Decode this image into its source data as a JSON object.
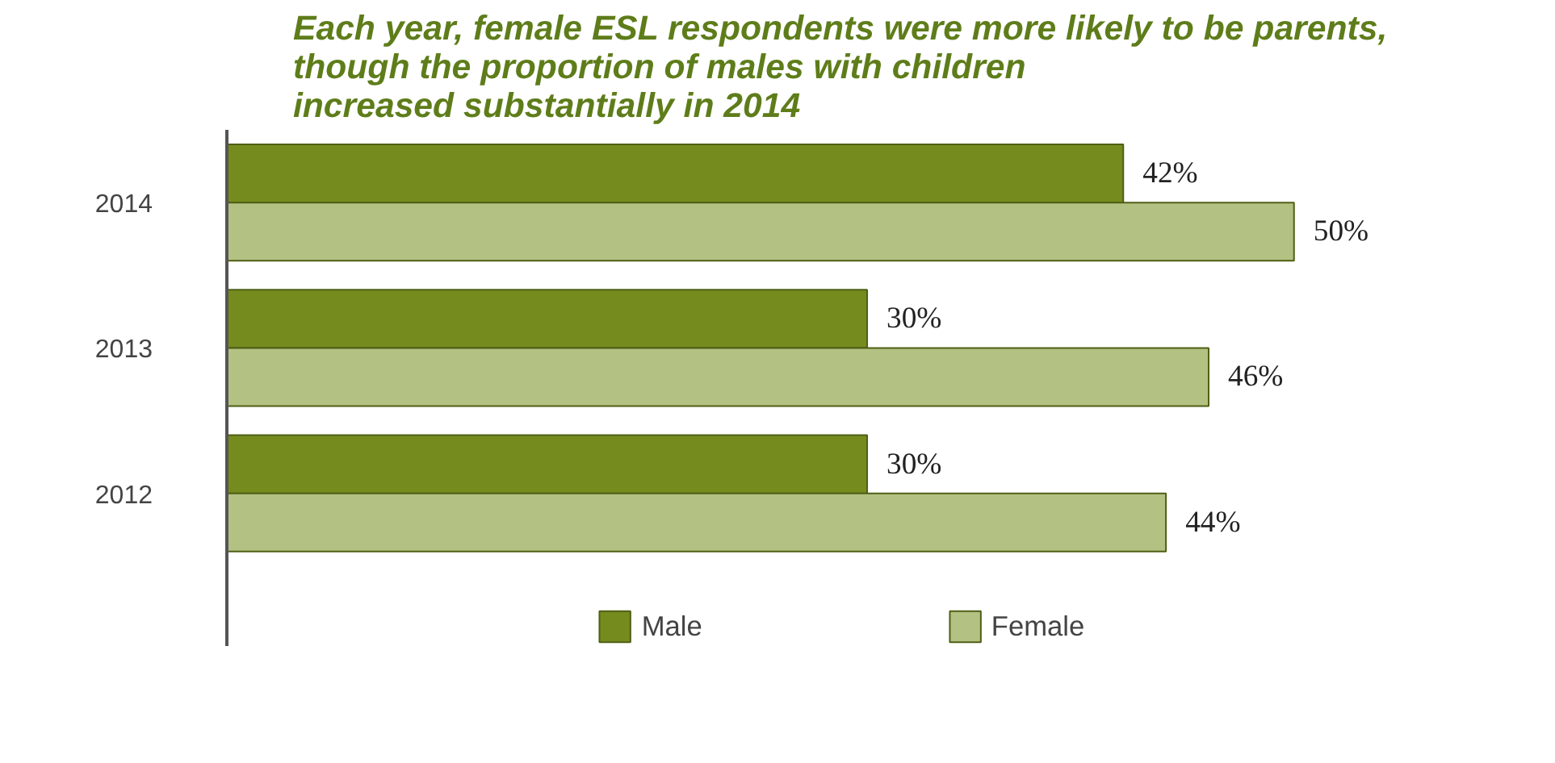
{
  "chart_data": {
    "type": "bar",
    "orientation": "horizontal",
    "title": "Each year, female ESL respondents were more likely to be parents,\nthough the proportion of males with children\nincreased substantially in 2014",
    "categories": [
      "2014",
      "2013",
      "2012"
    ],
    "series": [
      {
        "name": "Male",
        "color": "#758b1e",
        "values": [
          42,
          30,
          30
        ],
        "value_labels": [
          "42%",
          "30%",
          "30%"
        ]
      },
      {
        "name": "Female",
        "color": "#b3c283",
        "values": [
          50,
          46,
          44
        ],
        "value_labels": [
          "50%",
          "46%",
          "44%"
        ]
      }
    ],
    "legend": "bottom",
    "grid": false
  }
}
